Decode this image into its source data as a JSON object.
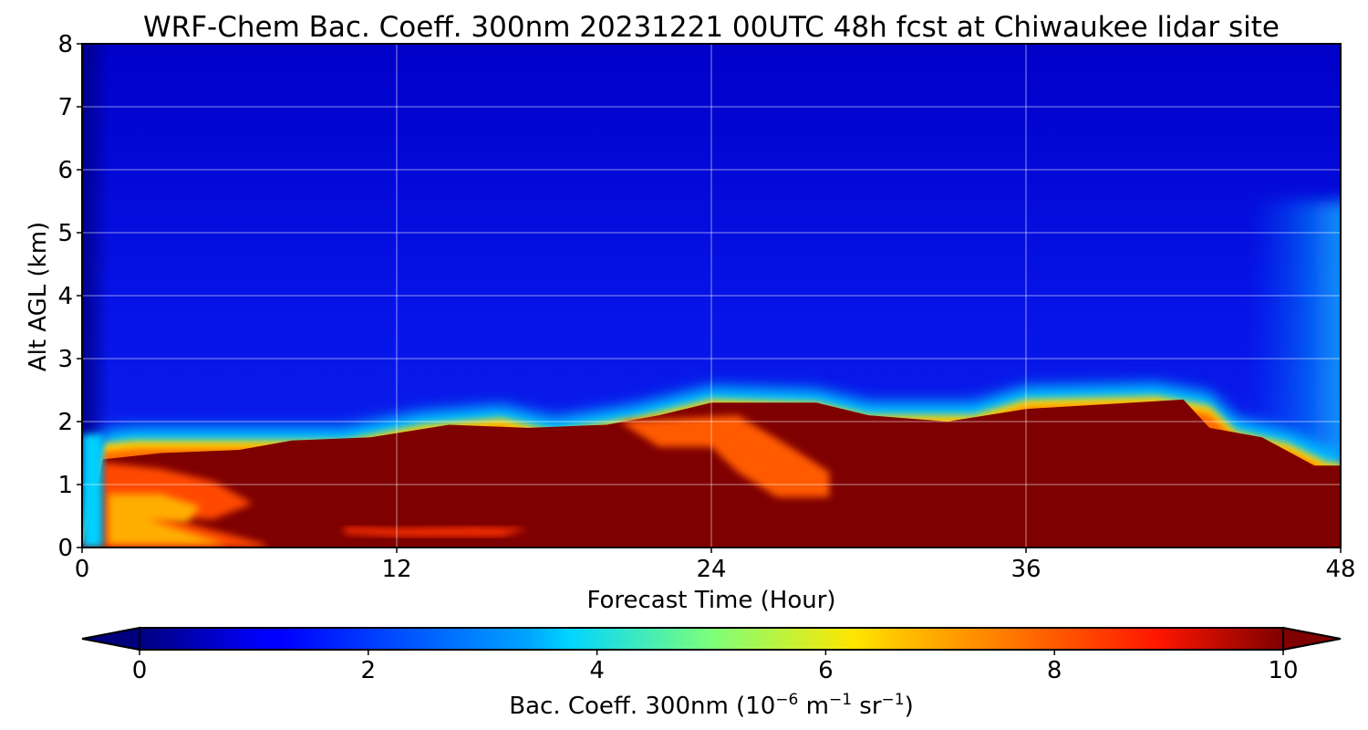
{
  "chart_data": {
    "type": "heatmap",
    "title": "WRF-Chem Bac. Coeff. 300nm  20231221 00UTC 48h fcst at Chiwaukee lidar site",
    "xlabel": "Forecast Time (Hour)",
    "ylabel": "Alt AGL (km)",
    "xlim": [
      0,
      48
    ],
    "ylim": [
      0,
      8
    ],
    "xticks": [
      "0",
      "12",
      "24",
      "36",
      "48"
    ],
    "yticks": [
      "0",
      "1",
      "2",
      "3",
      "4",
      "5",
      "6",
      "7",
      "8"
    ],
    "grid": true,
    "colormap": "jet",
    "colorbar": {
      "orientation": "horizontal",
      "placement": "bottom",
      "range": [
        0,
        10
      ],
      "ticks": [
        "0",
        "2",
        "4",
        "6",
        "8",
        "10"
      ],
      "label_main": "Bac. Coeff. 300nm  (10",
      "label_exp1": "−6",
      "label_mid": " m",
      "label_exp2": "−1",
      "label_mid2": " sr",
      "label_exp3": "−1",
      "label_end": ")",
      "extend": "both"
    },
    "field_description": {
      "boundary_layer_top_km": [
        [
          0,
          0.0
        ],
        [
          0.8,
          1.8
        ],
        [
          2,
          1.85
        ],
        [
          6,
          1.85
        ],
        [
          10,
          1.85
        ],
        [
          13,
          2.1
        ],
        [
          16,
          2.2
        ],
        [
          18,
          2.0
        ],
        [
          21,
          2.2
        ],
        [
          24,
          2.5
        ],
        [
          28,
          2.45
        ],
        [
          30,
          2.25
        ],
        [
          34,
          2.25
        ],
        [
          36,
          2.5
        ],
        [
          41,
          2.55
        ],
        [
          43,
          2.4
        ],
        [
          44,
          2.0
        ],
        [
          46,
          1.8
        ],
        [
          47.5,
          1.5
        ],
        [
          48,
          1.5
        ]
      ],
      "saturated_layer_top_km": [
        [
          0,
          0.0
        ],
        [
          0.8,
          1.4
        ],
        [
          3,
          1.5
        ],
        [
          6,
          1.55
        ],
        [
          8,
          1.7
        ],
        [
          11,
          1.75
        ],
        [
          14,
          1.95
        ],
        [
          17,
          1.9
        ],
        [
          20,
          1.95
        ],
        [
          22,
          2.1
        ],
        [
          24,
          2.3
        ],
        [
          28,
          2.3
        ],
        [
          30,
          2.1
        ],
        [
          33,
          2.0
        ],
        [
          36,
          2.2
        ],
        [
          42,
          2.35
        ],
        [
          43,
          1.9
        ],
        [
          45,
          1.75
        ],
        [
          47,
          1.3
        ],
        [
          48,
          1.3
        ]
      ]
    }
  }
}
